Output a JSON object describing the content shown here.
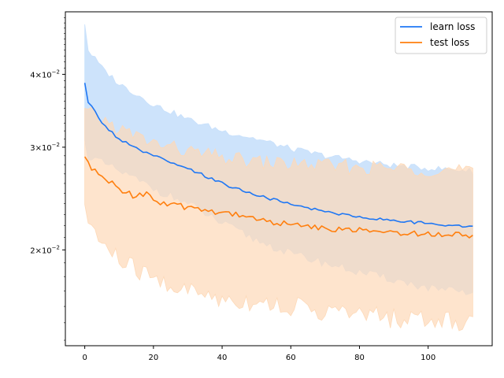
{
  "chart_data": {
    "type": "line",
    "title": "",
    "xlabel": "",
    "ylabel": "",
    "xlim": [
      -5.65,
      118.65
    ],
    "ylim": [
      0.0137,
      0.0512
    ],
    "yscale": "log",
    "grid": false,
    "legend_position": "top-right",
    "x_ticks": [
      0,
      20,
      40,
      60,
      80,
      100
    ],
    "y_ticks": [
      0.02,
      0.03,
      0.04
    ],
    "y_tick_labels": [
      {
        "base": "2",
        "exp": "−2"
      },
      {
        "base": "3",
        "exp": "−2"
      },
      {
        "base": "4",
        "exp": "−2"
      }
    ],
    "series": [
      {
        "name": "learn loss",
        "color": "#1f77f4",
        "band_color": "#c8e0fb",
        "x_start": 0,
        "x_end": 113,
        "keypoints": [
          [
            0,
            0.0385
          ],
          [
            1,
            0.0358
          ],
          [
            3,
            0.0345
          ],
          [
            6,
            0.0325
          ],
          [
            10,
            0.031
          ],
          [
            15,
            0.0298
          ],
          [
            20,
            0.029
          ],
          [
            25,
            0.0282
          ],
          [
            30,
            0.0275
          ],
          [
            35,
            0.0268
          ],
          [
            40,
            0.026
          ],
          [
            45,
            0.0254
          ],
          [
            50,
            0.0248
          ],
          [
            55,
            0.0244
          ],
          [
            60,
            0.0239
          ],
          [
            65,
            0.0236
          ],
          [
            70,
            0.0233
          ],
          [
            75,
            0.023
          ],
          [
            80,
            0.0228
          ],
          [
            85,
            0.0226
          ],
          [
            90,
            0.0225
          ],
          [
            95,
            0.0223
          ],
          [
            100,
            0.0222
          ],
          [
            105,
            0.0221
          ],
          [
            110,
            0.022
          ],
          [
            113,
            0.022
          ]
        ],
        "band_upper": [
          [
            0,
            0.049
          ],
          [
            1,
            0.044
          ],
          [
            5,
            0.041
          ],
          [
            10,
            0.0385
          ],
          [
            20,
            0.0355
          ],
          [
            30,
            0.0335
          ],
          [
            40,
            0.032
          ],
          [
            50,
            0.031
          ],
          [
            60,
            0.0298
          ],
          [
            70,
            0.029
          ],
          [
            80,
            0.0284
          ],
          [
            90,
            0.0279
          ],
          [
            100,
            0.0276
          ],
          [
            110,
            0.0274
          ],
          [
            113,
            0.0273
          ]
        ],
        "band_lower": [
          [
            0,
            0.0305
          ],
          [
            1,
            0.029
          ],
          [
            5,
            0.0282
          ],
          [
            10,
            0.0273
          ],
          [
            20,
            0.0255
          ],
          [
            30,
            0.024
          ],
          [
            40,
            0.0222
          ],
          [
            50,
            0.0208
          ],
          [
            60,
            0.0197
          ],
          [
            70,
            0.019
          ],
          [
            80,
            0.0183
          ],
          [
            90,
            0.0178
          ],
          [
            100,
            0.0172
          ],
          [
            110,
            0.0169
          ],
          [
            113,
            0.0168
          ]
        ]
      },
      {
        "name": "test loss",
        "color": "#ff7f0e",
        "band_color": "#fdd9b8",
        "x_start": 0,
        "x_end": 113,
        "keypoints": [
          [
            0,
            0.0287
          ],
          [
            2,
            0.0276
          ],
          [
            4,
            0.0268
          ],
          [
            6,
            0.0265
          ],
          [
            10,
            0.0255
          ],
          [
            14,
            0.0248
          ],
          [
            18,
            0.025
          ],
          [
            22,
            0.024
          ],
          [
            26,
            0.0238
          ],
          [
            30,
            0.0237
          ],
          [
            35,
            0.0234
          ],
          [
            40,
            0.0232
          ],
          [
            45,
            0.023
          ],
          [
            50,
            0.0226
          ],
          [
            55,
            0.0223
          ],
          [
            60,
            0.0221
          ],
          [
            65,
            0.0219
          ],
          [
            70,
            0.0218
          ],
          [
            75,
            0.0217
          ],
          [
            80,
            0.0216
          ],
          [
            85,
            0.0215
          ],
          [
            90,
            0.0214
          ],
          [
            95,
            0.0214
          ],
          [
            100,
            0.0213
          ],
          [
            105,
            0.0213
          ],
          [
            110,
            0.0212
          ],
          [
            113,
            0.0212
          ]
        ],
        "band_upper": [
          [
            0,
            0.0345
          ],
          [
            5,
            0.0335
          ],
          [
            10,
            0.0322
          ],
          [
            20,
            0.0305
          ],
          [
            30,
            0.0295
          ],
          [
            40,
            0.0288
          ],
          [
            50,
            0.0283
          ],
          [
            60,
            0.0281
          ],
          [
            70,
            0.0279
          ],
          [
            80,
            0.0277
          ],
          [
            90,
            0.0276
          ],
          [
            100,
            0.0275
          ],
          [
            110,
            0.0274
          ],
          [
            113,
            0.0273
          ]
        ],
        "band_lower": [
          [
            0,
            0.023
          ],
          [
            1,
            0.0225
          ],
          [
            5,
            0.0205
          ],
          [
            10,
            0.0192
          ],
          [
            20,
            0.0178
          ],
          [
            30,
            0.017
          ],
          [
            40,
            0.0165
          ],
          [
            50,
            0.0163
          ],
          [
            60,
            0.016
          ],
          [
            70,
            0.0157
          ],
          [
            80,
            0.0155
          ],
          [
            90,
            0.0153
          ],
          [
            100,
            0.0152
          ],
          [
            110,
            0.0151
          ],
          [
            113,
            0.0151
          ]
        ]
      }
    ]
  }
}
